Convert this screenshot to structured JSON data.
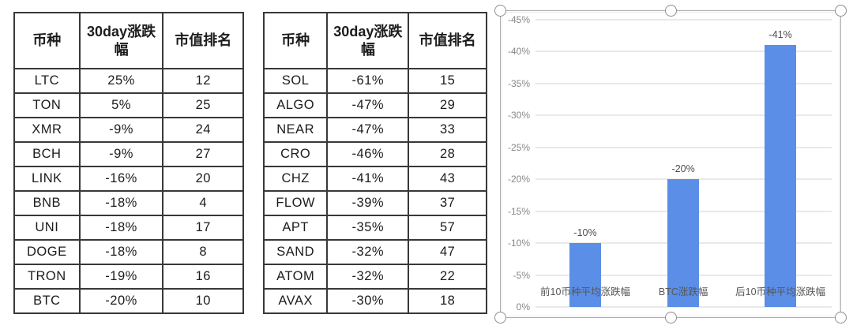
{
  "tables": [
    {
      "name": "top10-coins-table",
      "headers": [
        "币种",
        "30day涨跌幅",
        "市值排名"
      ],
      "rows": [
        [
          "LTC",
          "25%",
          "12"
        ],
        [
          "TON",
          "5%",
          "25"
        ],
        [
          "XMR",
          "-9%",
          "24"
        ],
        [
          "BCH",
          "-9%",
          "27"
        ],
        [
          "LINK",
          "-16%",
          "20"
        ],
        [
          "BNB",
          "-18%",
          "4"
        ],
        [
          "UNI",
          "-18%",
          "17"
        ],
        [
          "DOGE",
          "-18%",
          "8"
        ],
        [
          "TRON",
          "-19%",
          "16"
        ],
        [
          "BTC",
          "-20%",
          "10"
        ]
      ]
    },
    {
      "name": "bottom10-coins-table",
      "headers": [
        "币种",
        "30day涨跌幅",
        "市值排名"
      ],
      "rows": [
        [
          "SOL",
          "-61%",
          "15"
        ],
        [
          "ALGO",
          "-47%",
          "29"
        ],
        [
          "NEAR",
          "-47%",
          "33"
        ],
        [
          "CRO",
          "-46%",
          "28"
        ],
        [
          "CHZ",
          "-41%",
          "43"
        ],
        [
          "FLOW",
          "-39%",
          "37"
        ],
        [
          "APT",
          "-35%",
          "57"
        ],
        [
          "SAND",
          "-32%",
          "47"
        ],
        [
          "ATOM",
          "-32%",
          "22"
        ],
        [
          "AVAX",
          "-30%",
          "18"
        ]
      ]
    }
  ],
  "chart_data": {
    "type": "bar",
    "title": "",
    "xlabel": "",
    "ylabel": "",
    "categories": [
      "前10币种平均涨跌幅",
      "BTC涨跌幅",
      "后10币种平均涨跌幅"
    ],
    "values": [
      -10,
      -20,
      -41
    ],
    "data_labels": [
      "-10%",
      "-20%",
      "-41%"
    ],
    "y_ticks": [
      "-45%",
      "-40%",
      "-35%",
      "-30%",
      "-25%",
      "-20%",
      "-15%",
      "-10%",
      "-5%",
      "0%"
    ],
    "ylim": [
      0,
      -45
    ],
    "y_axis_inverted": true,
    "grid": true,
    "legend": "none",
    "bar_color": "#5b8ee6",
    "gridline_color": "#e9e9e9",
    "chart_selected": true
  },
  "colors": {
    "bar": "#5b8ee6",
    "gridline": "#e9e9e9",
    "table_border": "#383838",
    "axis_text": "#878787",
    "label_text": "#4d4d4d",
    "selection_outline": "#ababab"
  }
}
